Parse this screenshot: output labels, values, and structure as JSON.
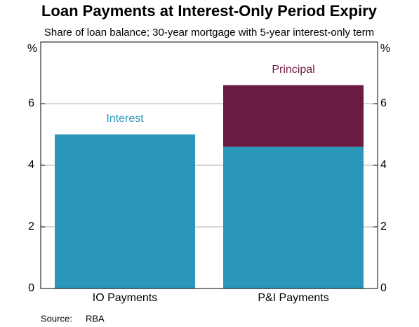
{
  "chart_data": {
    "type": "stacked_bar",
    "title": "Loan Payments at Interest-Only Period Expiry",
    "subtitle": "Share of loan balance; 30-year mortgage with 5-year interest-only term",
    "y_unit": "%",
    "categories": [
      "IO Payments",
      "P&I Payments"
    ],
    "series": [
      {
        "name": "Interest",
        "color": "#2a96b8",
        "values": [
          5.0,
          4.6
        ]
      },
      {
        "name": "Principal",
        "color": "#6b1a42",
        "values": [
          null,
          2.0
        ]
      }
    ],
    "ylim": [
      0,
      8
    ],
    "yticks": [
      0,
      2,
      4,
      6
    ],
    "grid": true,
    "source_label": "Source:",
    "source": "RBA"
  }
}
